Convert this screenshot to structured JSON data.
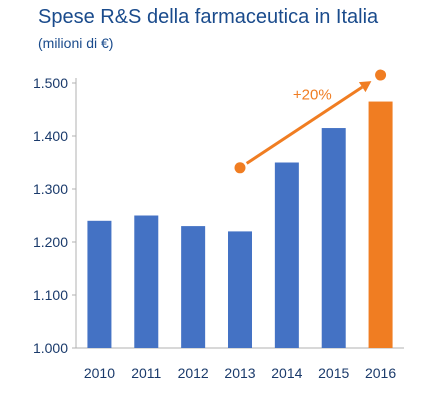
{
  "chart_data": {
    "type": "bar",
    "title": "Spese R&S della farmaceutica in Italia",
    "subtitle": "(milioni di €)",
    "categories": [
      "2010",
      "2011",
      "2012",
      "2013",
      "2014",
      "2015",
      "2016"
    ],
    "values": [
      1240,
      1250,
      1230,
      1220,
      1350,
      1415,
      1465
    ],
    "ylim": [
      1000,
      1500
    ],
    "yticks": [
      1000,
      1100,
      1200,
      1300,
      1400,
      1500
    ],
    "ytick_labels": [
      "1.000",
      "1.100",
      "1.200",
      "1.300",
      "1.400",
      "1.500"
    ],
    "grid": false,
    "bar_color": "#4472c4",
    "highlight_color": "#f07d22",
    "highlight_category": "2016",
    "annotation": {
      "text": "+20%",
      "from": {
        "x": "2013",
        "y": 1340
      },
      "to": {
        "x": "2016",
        "y": 1515
      }
    }
  }
}
